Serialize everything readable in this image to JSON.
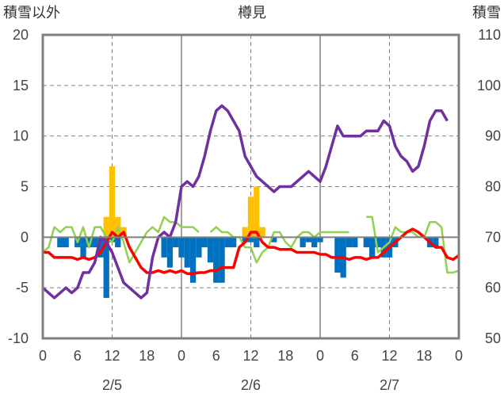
{
  "labels": {
    "left_axis_title": "積雪以外",
    "station": "樽見",
    "right_axis_title": "積雪"
  },
  "colors": {
    "snowfall_bar": "#ffc000",
    "precip_bar": "#0070c0",
    "temperature_line": "#ff0000",
    "humidity_line": "#92d050",
    "snow_depth_line": "#7030a0",
    "frame": "#808080",
    "grid": "#808080"
  },
  "chart_data": {
    "type": "bar+line",
    "x_unit": "hour",
    "x_range": [
      0,
      72
    ],
    "x_tick_labels": [
      "0",
      "6",
      "12",
      "18",
      "0",
      "6",
      "12",
      "18",
      "0",
      "6",
      "12",
      "18",
      "0"
    ],
    "x_tick_hours": [
      0,
      6,
      12,
      18,
      24,
      30,
      36,
      42,
      48,
      54,
      60,
      66,
      72
    ],
    "date_labels": [
      {
        "label": "2/5",
        "hour": 12
      },
      {
        "label": "2/6",
        "hour": 36
      },
      {
        "label": "2/7",
        "hour": 60
      }
    ],
    "y_left": {
      "range": [
        -10,
        20
      ],
      "ticks": [
        20,
        15,
        10,
        5,
        0,
        -5,
        -10
      ]
    },
    "y_right": {
      "range": [
        50,
        110
      ],
      "ticks": [
        110,
        100,
        90,
        80,
        70,
        60,
        50
      ]
    },
    "grid": "dashed",
    "series": [
      {
        "kind": "bar",
        "axis": "left",
        "color_key": "snowfall_bar",
        "values": [
          [
            11,
            2
          ],
          [
            12,
            7
          ],
          [
            13,
            2
          ],
          [
            14,
            1
          ],
          [
            35,
            1
          ],
          [
            36,
            4
          ],
          [
            37,
            5
          ],
          [
            38,
            1
          ]
        ]
      },
      {
        "kind": "bar",
        "axis": "left",
        "color_key": "precip_bar",
        "values": [
          [
            3,
            -1
          ],
          [
            4,
            -1
          ],
          [
            6,
            -1
          ],
          [
            7,
            -2
          ],
          [
            8,
            -1
          ],
          [
            9,
            -1
          ],
          [
            10,
            -2
          ],
          [
            11,
            -6
          ],
          [
            12,
            -0.5
          ],
          [
            13,
            -1
          ],
          [
            21,
            -2
          ],
          [
            22,
            -3
          ],
          [
            23,
            -1
          ],
          [
            24,
            -2
          ],
          [
            25,
            -3
          ],
          [
            26,
            -4.5
          ],
          [
            27,
            -2
          ],
          [
            28,
            -1
          ],
          [
            29,
            -2.5
          ],
          [
            30,
            -4.5
          ],
          [
            31,
            -4.5
          ],
          [
            32,
            -1
          ],
          [
            33,
            -1
          ],
          [
            35,
            -0.5
          ],
          [
            36,
            -0.5
          ],
          [
            37,
            -1
          ],
          [
            40,
            -0.5
          ],
          [
            45,
            -1
          ],
          [
            46,
            -0.5
          ],
          [
            47,
            -1
          ],
          [
            48,
            -0.5
          ],
          [
            51,
            -3.5
          ],
          [
            52,
            -4
          ],
          [
            53,
            -1
          ],
          [
            54,
            -1
          ],
          [
            56,
            -1
          ],
          [
            57,
            -2
          ],
          [
            58,
            -1
          ],
          [
            59,
            -2
          ],
          [
            60,
            -2
          ],
          [
            61,
            -1
          ],
          [
            67,
            -1
          ],
          [
            68,
            -1
          ]
        ]
      },
      {
        "kind": "line",
        "axis": "left",
        "color_key": "temperature_line",
        "values": [
          [
            0,
            -1.5
          ],
          [
            1,
            -1.5
          ],
          [
            2,
            -2
          ],
          [
            3,
            -2
          ],
          [
            4,
            -2
          ],
          [
            5,
            -2
          ],
          [
            6,
            -2.2
          ],
          [
            7,
            -2
          ],
          [
            8,
            -2.2
          ],
          [
            9,
            -2
          ],
          [
            10,
            -1.5
          ],
          [
            11,
            -0.5
          ],
          [
            12,
            0.5
          ],
          [
            13,
            0
          ],
          [
            14,
            0.5
          ],
          [
            15,
            -1
          ],
          [
            16,
            -2
          ],
          [
            17,
            -3
          ],
          [
            18,
            -3.5
          ],
          [
            19,
            -3.5
          ],
          [
            20,
            -3.3
          ],
          [
            21,
            -3.5
          ],
          [
            22,
            -3.3
          ],
          [
            23,
            -3.5
          ],
          [
            24,
            -3.3
          ],
          [
            25,
            -3.6
          ],
          [
            26,
            -3.6
          ],
          [
            27,
            -3.5
          ],
          [
            28,
            -3.5
          ],
          [
            29,
            -3.3
          ],
          [
            30,
            -3.3
          ],
          [
            31,
            -3
          ],
          [
            32,
            -3
          ],
          [
            33,
            -3
          ],
          [
            34,
            -1
          ],
          [
            35,
            -0.5
          ],
          [
            36,
            0.5
          ],
          [
            37,
            0.5
          ],
          [
            38,
            -0.5
          ],
          [
            39,
            -1
          ],
          [
            40,
            -1
          ],
          [
            41,
            -1.2
          ],
          [
            42,
            -1.2
          ],
          [
            43,
            -1.2
          ],
          [
            44,
            -1.5
          ],
          [
            45,
            -1.5
          ],
          [
            46,
            -1.5
          ],
          [
            47,
            -1.5
          ],
          [
            48,
            -1.7
          ],
          [
            49,
            -1.7
          ],
          [
            50,
            -2
          ],
          [
            51,
            -2
          ],
          [
            52,
            -2
          ],
          [
            53,
            -2.2
          ],
          [
            54,
            -2
          ],
          [
            55,
            -2
          ],
          [
            56,
            -2.2
          ],
          [
            57,
            -2
          ],
          [
            58,
            -2
          ],
          [
            59,
            -1.5
          ],
          [
            60,
            -1
          ],
          [
            61,
            -0.5
          ],
          [
            62,
            0
          ],
          [
            63,
            0.5
          ],
          [
            64,
            0.8
          ],
          [
            65,
            0.5
          ],
          [
            66,
            0
          ],
          [
            67,
            -0.5
          ],
          [
            68,
            -1
          ],
          [
            69,
            -1
          ],
          [
            70,
            -2
          ],
          [
            71,
            -2.2
          ],
          [
            72,
            -1.8
          ]
        ]
      },
      {
        "kind": "line",
        "axis": "left",
        "color_key": "humidity_line",
        "segments": [
          [
            [
              0,
              -1.5
            ],
            [
              1,
              -1
            ],
            [
              2,
              1
            ],
            [
              3,
              0.5
            ],
            [
              4,
              1
            ],
            [
              5,
              1
            ],
            [
              6,
              -0.5
            ],
            [
              7,
              1
            ],
            [
              8,
              -1
            ],
            [
              9,
              1
            ],
            [
              10,
              1
            ],
            [
              11,
              0
            ],
            [
              12,
              -0.5
            ],
            [
              13,
              1
            ],
            [
              14,
              -0.5
            ],
            [
              15,
              -2.5
            ],
            [
              16,
              -1.5
            ],
            [
              17,
              -0.5
            ],
            [
              18,
              0.5
            ],
            [
              19,
              1
            ],
            [
              20,
              0.5
            ],
            [
              21,
              2
            ],
            [
              22,
              1.5
            ],
            [
              23,
              1.5
            ],
            [
              24,
              1
            ],
            [
              25,
              1
            ],
            [
              26,
              1
            ],
            [
              27,
              0.5
            ]
          ],
          [
            [
              29,
              0.5
            ],
            [
              30,
              1
            ],
            [
              31,
              0.5
            ],
            [
              32,
              0.5
            ],
            [
              33,
              0
            ],
            [
              34,
              0
            ],
            [
              35,
              -1
            ],
            [
              36,
              -1
            ],
            [
              37,
              -2.5
            ],
            [
              38,
              -1.5
            ],
            [
              39,
              -1
            ],
            [
              40,
              0.5
            ],
            [
              41,
              0.5
            ],
            [
              42,
              -0.5
            ],
            [
              43,
              -1
            ],
            [
              44,
              0
            ],
            [
              45,
              0.5
            ],
            [
              46,
              0.5
            ],
            [
              47,
              0
            ],
            [
              48,
              0.5
            ],
            [
              49,
              0.5
            ],
            [
              50,
              0.5
            ],
            [
              51,
              0.5
            ],
            [
              52,
              0.5
            ],
            [
              53,
              0.5
            ]
          ],
          [
            [
              56,
              2
            ],
            [
              57,
              2
            ],
            [
              58,
              -1.5
            ],
            [
              59,
              -1
            ],
            [
              60,
              -0.5
            ],
            [
              61,
              1
            ],
            [
              62,
              0.5
            ],
            [
              63,
              0.5
            ],
            [
              64,
              0.5
            ],
            [
              65,
              0
            ],
            [
              66,
              0
            ],
            [
              67,
              1.5
            ],
            [
              68,
              1.5
            ],
            [
              69,
              1
            ],
            [
              70,
              -3.5
            ],
            [
              71,
              -3.5
            ],
            [
              72,
              -3.3
            ]
          ]
        ]
      },
      {
        "kind": "line",
        "axis": "right",
        "color_key": "snow_depth_line",
        "values": [
          [
            0,
            60
          ],
          [
            1,
            59
          ],
          [
            2,
            58
          ],
          [
            3,
            59
          ],
          [
            4,
            60
          ],
          [
            5,
            59
          ],
          [
            6,
            60
          ],
          [
            7,
            63
          ],
          [
            8,
            63
          ],
          [
            9,
            65
          ],
          [
            10,
            70
          ],
          [
            11,
            69
          ],
          [
            12,
            67
          ],
          [
            13,
            64
          ],
          [
            14,
            61
          ],
          [
            15,
            60
          ],
          [
            16,
            59
          ],
          [
            17,
            58
          ],
          [
            18,
            59
          ],
          [
            19,
            66
          ],
          [
            20,
            70
          ],
          [
            21,
            71
          ],
          [
            22,
            70
          ],
          [
            23,
            73
          ],
          [
            24,
            80
          ],
          [
            25,
            81
          ],
          [
            26,
            80
          ],
          [
            27,
            82
          ],
          [
            28,
            86
          ],
          [
            29,
            91
          ],
          [
            30,
            95
          ],
          [
            31,
            96
          ],
          [
            32,
            95
          ],
          [
            33,
            93
          ],
          [
            34,
            91
          ],
          [
            35,
            86
          ],
          [
            36,
            84
          ],
          [
            37,
            82
          ],
          [
            38,
            81
          ],
          [
            39,
            80
          ],
          [
            40,
            79
          ],
          [
            41,
            80
          ],
          [
            42,
            80
          ],
          [
            43,
            80
          ],
          [
            44,
            81
          ],
          [
            45,
            82
          ],
          [
            46,
            83
          ],
          [
            47,
            82
          ],
          [
            48,
            81
          ],
          [
            49,
            84
          ],
          [
            50,
            88
          ],
          [
            51,
            92
          ],
          [
            52,
            90
          ],
          [
            53,
            90
          ],
          [
            54,
            90
          ],
          [
            55,
            90
          ],
          [
            56,
            91
          ],
          [
            57,
            91
          ],
          [
            58,
            91
          ],
          [
            59,
            93
          ],
          [
            60,
            92
          ],
          [
            61,
            88
          ],
          [
            62,
            86
          ],
          [
            63,
            85
          ],
          [
            64,
            83
          ],
          [
            65,
            84
          ],
          [
            66,
            88
          ],
          [
            67,
            93
          ],
          [
            68,
            95
          ],
          [
            69,
            95
          ],
          [
            70,
            93
          ]
        ]
      }
    ]
  }
}
